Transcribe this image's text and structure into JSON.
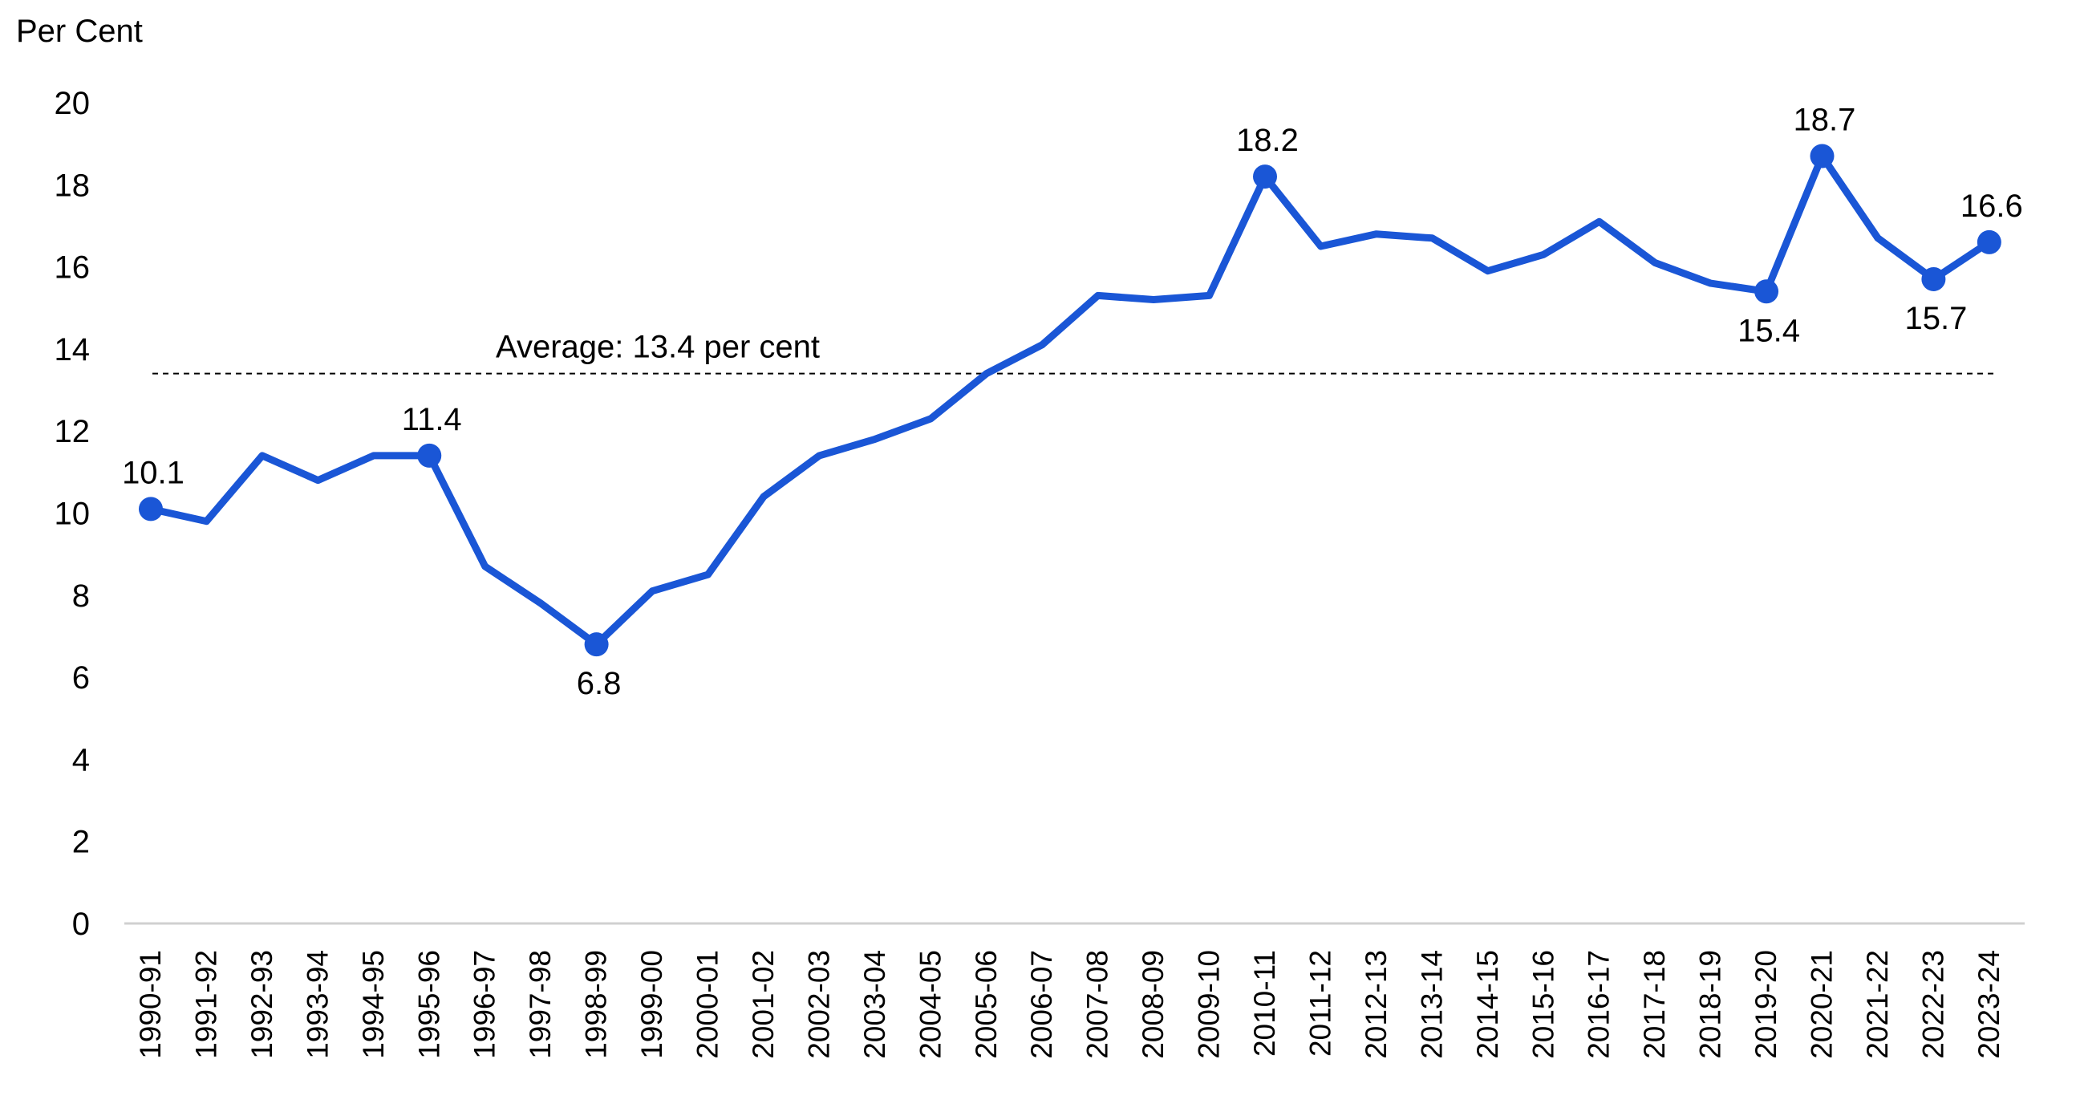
{
  "chart_data": {
    "type": "line",
    "ylabel": "Per Cent",
    "ylim": [
      0,
      20
    ],
    "yticks": [
      0,
      2,
      4,
      6,
      8,
      10,
      12,
      14,
      16,
      18,
      20
    ],
    "grid": false,
    "legend": "none",
    "categories": [
      "1990-91",
      "1991-92",
      "1992-93",
      "1993-94",
      "1994-95",
      "1995-96",
      "1996-97",
      "1997-98",
      "1998-99",
      "1999-00",
      "2000-01",
      "2001-02",
      "2002-03",
      "2003-04",
      "2004-05",
      "2005-06",
      "2006-07",
      "2007-08",
      "2008-09",
      "2009-10",
      "2010-11",
      "2011-12",
      "2012-13",
      "2013-14",
      "2014-15",
      "2015-16",
      "2016-17",
      "2017-18",
      "2018-19",
      "2019-20",
      "2020-21",
      "2021-22",
      "2022-23",
      "2023-24"
    ],
    "series": [
      {
        "values": [
          10.1,
          9.8,
          11.4,
          10.8,
          11.4,
          11.4,
          8.7,
          7.8,
          6.8,
          8.1,
          8.5,
          10.4,
          11.4,
          11.8,
          12.3,
          13.4,
          14.1,
          15.3,
          15.2,
          15.3,
          18.2,
          16.5,
          16.8,
          16.7,
          15.9,
          16.3,
          17.1,
          16.1,
          15.6,
          15.4,
          18.7,
          16.7,
          15.7,
          16.6
        ],
        "color": "#1a56d6"
      }
    ],
    "data_labels": [
      {
        "index": 0,
        "text": "10.1",
        "position": "above"
      },
      {
        "index": 5,
        "text": "11.4",
        "position": "above"
      },
      {
        "index": 8,
        "text": "6.8",
        "position": "below"
      },
      {
        "index": 20,
        "text": "18.2",
        "position": "above"
      },
      {
        "index": 29,
        "text": "15.4",
        "position": "below"
      },
      {
        "index": 30,
        "text": "18.7",
        "position": "above"
      },
      {
        "index": 32,
        "text": "15.7",
        "position": "below"
      },
      {
        "index": 33,
        "text": "16.6",
        "position": "above"
      }
    ],
    "average": {
      "value": 13.4,
      "label": "Average: 13.4 per cent"
    }
  }
}
